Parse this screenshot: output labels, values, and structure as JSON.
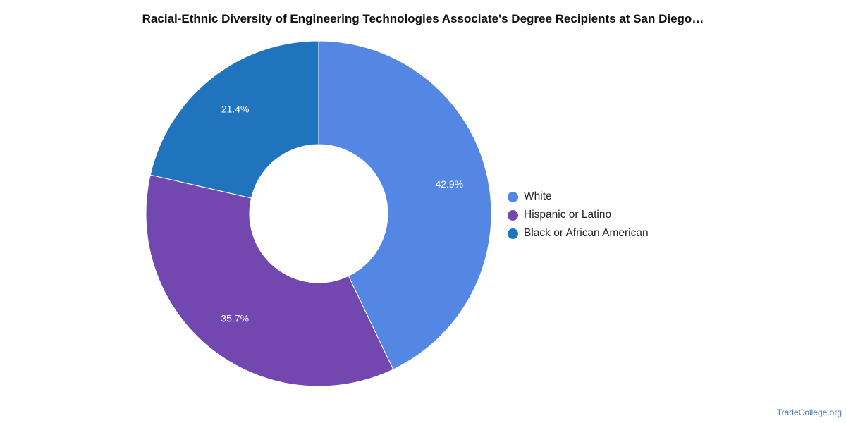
{
  "chart_data": {
    "type": "pie",
    "variant": "donut",
    "title": "Racial-Ethnic Diversity of Engineering Technologies Associate's Degree Recipients at San Diego…",
    "categories": [
      "White",
      "Hispanic or Latino",
      "Black or African American"
    ],
    "values": [
      42.9,
      35.7,
      21.4
    ],
    "value_labels": [
      "42.9%",
      "35.7%",
      "21.4%"
    ],
    "colors": [
      "#5487e3",
      "#7347b0",
      "#1f74bd"
    ],
    "legend_position": "right"
  },
  "source": "TradeCollege.org"
}
